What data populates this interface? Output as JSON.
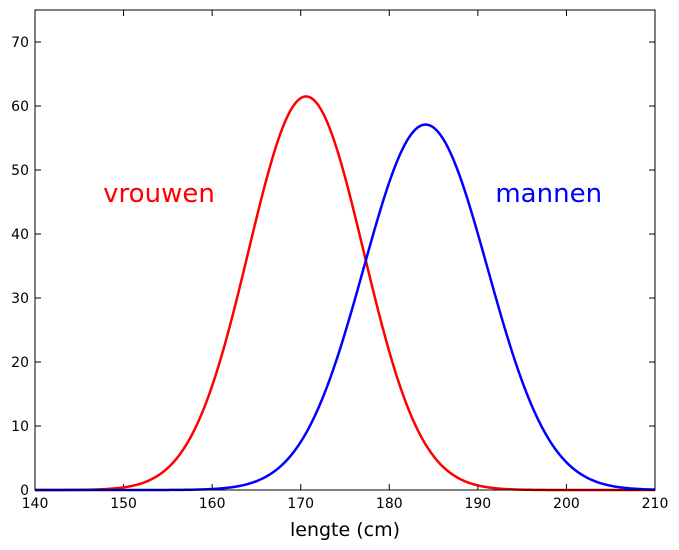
{
  "chart_data": {
    "type": "line",
    "title": "",
    "xlabel": "lengte (cm)",
    "ylabel": "",
    "xlim": [
      140,
      210
    ],
    "ylim": [
      0,
      75
    ],
    "x_ticks": [
      140,
      150,
      160,
      170,
      180,
      190,
      200,
      210
    ],
    "y_ticks": [
      0,
      10,
      20,
      30,
      40,
      50,
      60,
      70
    ],
    "grid": false,
    "legend": "none",
    "series": [
      {
        "label": "vrouwen",
        "color": "#ff0000",
        "peak_x": 170.6,
        "peak_y": 61.5,
        "sd": 6.5,
        "points": [
          [
            140,
            0.0
          ],
          [
            145,
            0.1
          ],
          [
            150,
            0.4
          ],
          [
            155,
            3.1
          ],
          [
            158,
            9.7
          ],
          [
            160,
            18.2
          ],
          [
            162,
            29.6
          ],
          [
            164,
            41.6
          ],
          [
            166,
            52.3
          ],
          [
            168,
            59.5
          ],
          [
            170,
            61.4
          ],
          [
            172,
            58.8
          ],
          [
            174,
            51.6
          ],
          [
            176,
            41.6
          ],
          [
            178,
            31.0
          ],
          [
            180,
            21.3
          ],
          [
            182,
            13.6
          ],
          [
            184,
            8.0
          ],
          [
            186,
            4.4
          ],
          [
            188,
            2.2
          ],
          [
            190,
            1.0
          ],
          [
            195,
            0.2
          ],
          [
            200,
            0.0
          ],
          [
            210,
            0.0
          ]
        ]
      },
      {
        "label": "mannen",
        "color": "#0000ff",
        "peak_x": 184.1,
        "peak_y": 57.1,
        "sd": 7.0,
        "points": [
          [
            140,
            0.0
          ],
          [
            160,
            0.0
          ],
          [
            165,
            0.2
          ],
          [
            168,
            1.3
          ],
          [
            170,
            3.7
          ],
          [
            172,
            8.0
          ],
          [
            174,
            14.8
          ],
          [
            176,
            23.5
          ],
          [
            178,
            32.8
          ],
          [
            180,
            42.0
          ],
          [
            182,
            50.6
          ],
          [
            184,
            57.0
          ],
          [
            186,
            56.7
          ],
          [
            188,
            53.6
          ],
          [
            190,
            46.2
          ],
          [
            192,
            37.0
          ],
          [
            194,
            27.6
          ],
          [
            196,
            19.2
          ],
          [
            198,
            12.2
          ],
          [
            200,
            7.3
          ],
          [
            202,
            3.9
          ],
          [
            205,
            1.2
          ],
          [
            208,
            0.3
          ],
          [
            210,
            0.1
          ]
        ]
      }
    ],
    "annotations": [
      {
        "text": "vrouwen",
        "x": 154.0,
        "y": 45.0,
        "color": "#ff0000"
      },
      {
        "text": "mannen",
        "x": 198.0,
        "y": 45.0,
        "color": "#0000ff"
      }
    ]
  }
}
